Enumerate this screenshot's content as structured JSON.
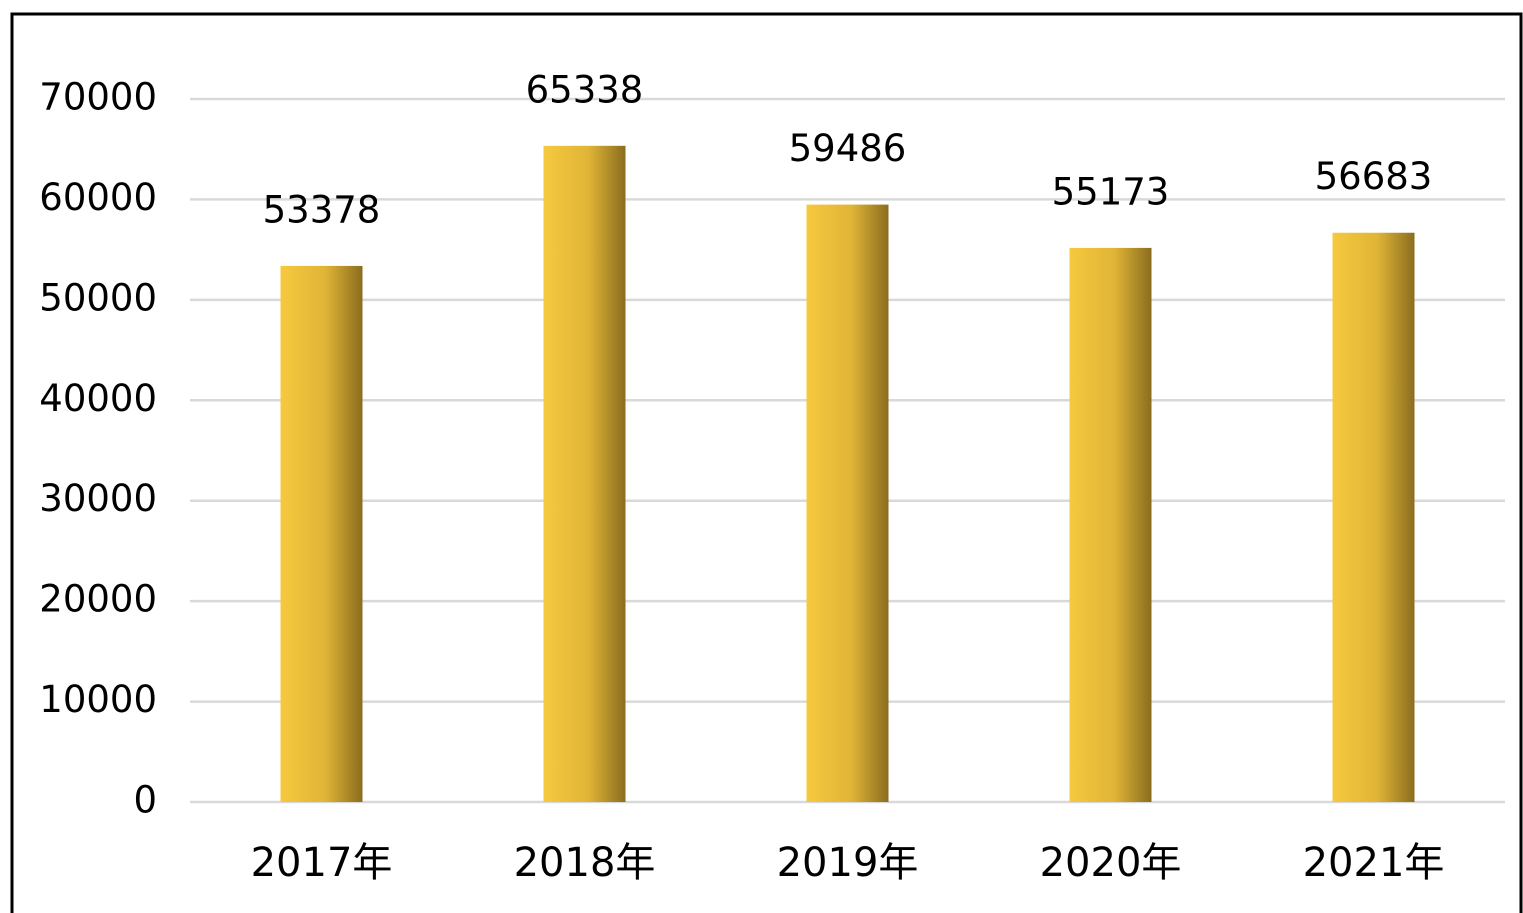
{
  "chart_data": {
    "type": "bar",
    "categories": [
      "2017年",
      "2018年",
      "2019年",
      "2020年",
      "2021年"
    ],
    "values": [
      53378,
      65338,
      59486,
      55173,
      56683
    ],
    "color": "#f6c93f",
    "ylim": [
      0,
      70000
    ],
    "yticks": [
      0,
      10000,
      20000,
      30000,
      40000,
      50000,
      60000,
      70000
    ],
    "grid": true
  }
}
